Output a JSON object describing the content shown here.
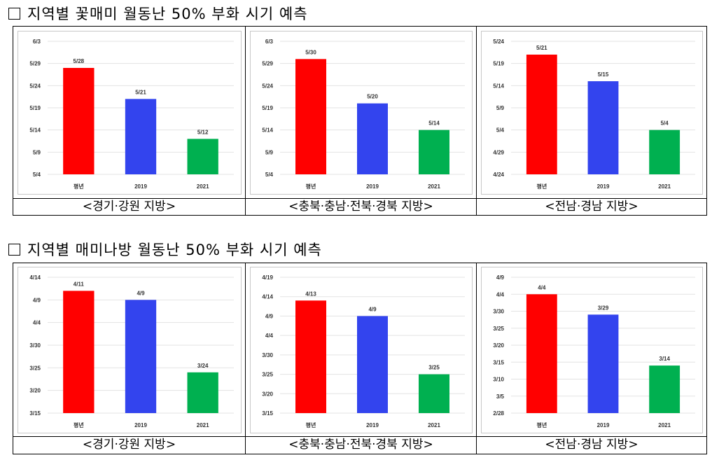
{
  "sections": [
    {
      "title": "지역별 꽃매미 월동난 50% 부화 시기 예측",
      "captions": [
        "<경기·강원 지방>",
        "<충북·충남·전북·경북 지방>",
        "<전남·경남 지방>"
      ]
    },
    {
      "title": "지역별 매미나방 월동난 50% 부화 시기 예측",
      "captions": [
        "<경기·강원 지방>",
        "<충북·충남·전북·경북 지방>",
        "<전남·경남 지방>"
      ]
    }
  ],
  "chart_data": [
    {
      "type": "bar",
      "year": 2021,
      "categories": [
        "평년",
        "2019",
        "2021"
      ],
      "values": [
        "5/28",
        "5/21",
        "5/12"
      ],
      "yticks": [
        "5/4",
        "5/9",
        "5/14",
        "5/19",
        "5/24",
        "5/29",
        "6/3"
      ],
      "ylim": [
        "5/4",
        "6/3"
      ],
      "colors": [
        "#ff0000",
        "#3344ee",
        "#00b050"
      ]
    },
    {
      "type": "bar",
      "year": 2021,
      "categories": [
        "평년",
        "2019",
        "2021"
      ],
      "values": [
        "5/30",
        "5/20",
        "5/14"
      ],
      "yticks": [
        "5/4",
        "5/9",
        "5/14",
        "5/19",
        "5/24",
        "5/29",
        "6/3"
      ],
      "ylim": [
        "5/4",
        "6/3"
      ],
      "colors": [
        "#ff0000",
        "#3344ee",
        "#00b050"
      ]
    },
    {
      "type": "bar",
      "year": 2021,
      "categories": [
        "평년",
        "2019",
        "2021"
      ],
      "values": [
        "5/21",
        "5/15",
        "5/4"
      ],
      "yticks": [
        "4/24",
        "4/29",
        "5/4",
        "5/9",
        "5/14",
        "5/19",
        "5/24"
      ],
      "ylim": [
        "4/24",
        "5/24"
      ],
      "colors": [
        "#ff0000",
        "#3344ee",
        "#00b050"
      ]
    },
    {
      "type": "bar",
      "year": 2021,
      "categories": [
        "평년",
        "2019",
        "2021"
      ],
      "values": [
        "4/11",
        "4/9",
        "3/24"
      ],
      "yticks": [
        "3/15",
        "3/20",
        "3/25",
        "3/30",
        "4/4",
        "4/9",
        "4/14"
      ],
      "ylim": [
        "3/15",
        "4/14"
      ],
      "colors": [
        "#ff0000",
        "#3344ee",
        "#00b050"
      ]
    },
    {
      "type": "bar",
      "year": 2021,
      "categories": [
        "평년",
        "2019",
        "2021"
      ],
      "values": [
        "4/13",
        "4/9",
        "3/25"
      ],
      "yticks": [
        "3/15",
        "3/20",
        "3/25",
        "3/30",
        "4/4",
        "4/9",
        "4/14",
        "4/19"
      ],
      "ylim": [
        "3/15",
        "4/19"
      ],
      "colors": [
        "#ff0000",
        "#3344ee",
        "#00b050"
      ]
    },
    {
      "type": "bar",
      "year": 2021,
      "categories": [
        "평년",
        "2019",
        "2021"
      ],
      "values": [
        "4/4",
        "3/29",
        "3/14"
      ],
      "yticks": [
        "2/28",
        "3/5",
        "3/10",
        "3/15",
        "3/20",
        "3/25",
        "3/30",
        "4/4",
        "4/9"
      ],
      "ylim": [
        "2/28",
        "4/9"
      ],
      "colors": [
        "#ff0000",
        "#3344ee",
        "#00b050"
      ]
    }
  ]
}
